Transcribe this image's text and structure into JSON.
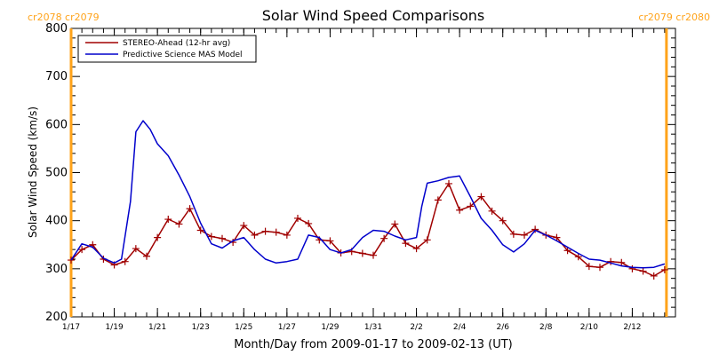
{
  "chart_data": {
    "type": "line",
    "title": "Solar Wind Speed Comparisons",
    "xlabel": "Month/Day from 2009-01-17 to 2009-02-13 (UT)",
    "ylabel": "Solar Wind Speed (km/s)",
    "ylim": [
      200,
      800
    ],
    "xlim": [
      "2009-01-17",
      "2009-02-14"
    ],
    "yticks": [
      "200",
      "300",
      "400",
      "500",
      "600",
      "700",
      "800"
    ],
    "xticks": [
      {
        "date": "2009-01-17",
        "label": "1/17"
      },
      {
        "date": "2009-01-19",
        "label": "1/19"
      },
      {
        "date": "2009-01-21",
        "label": "1/21"
      },
      {
        "date": "2009-01-23",
        "label": "1/23"
      },
      {
        "date": "2009-01-25",
        "label": "1/25"
      },
      {
        "date": "2009-01-27",
        "label": "1/27"
      },
      {
        "date": "2009-01-29",
        "label": "1/29"
      },
      {
        "date": "2009-01-31",
        "label": "1/31"
      },
      {
        "date": "2009-02-02",
        "label": "2/2"
      },
      {
        "date": "2009-02-04",
        "label": "2/4"
      },
      {
        "date": "2009-02-06",
        "label": "2/6"
      },
      {
        "date": "2009-02-08",
        "label": "2/8"
      },
      {
        "date": "2009-02-10",
        "label": "2/10"
      },
      {
        "date": "2009-02-12",
        "label": "2/12"
      }
    ],
    "grid": false,
    "legend": "top-left",
    "rotations": [
      {
        "date": "2009-01-17",
        "side": "left",
        "label": "cr2078 cr2079",
        "color": "#ffa31a"
      },
      {
        "date": "2009-02-13 14:00",
        "side": "right",
        "label": "cr2079 cr2080",
        "color": "#ffa31a"
      }
    ],
    "series": [
      {
        "name": "STEREO-Ahead (12-hr avg)",
        "color": "#a00000",
        "marker": "plus",
        "points": [
          [
            "2009-01-17 00:00",
            318
          ],
          [
            "2009-01-17 12:00",
            340
          ],
          [
            "2009-01-18 00:00",
            350
          ],
          [
            "2009-01-18 12:00",
            320
          ],
          [
            "2009-01-19 00:00",
            308
          ],
          [
            "2009-01-19 12:00",
            315
          ],
          [
            "2009-01-20 00:00",
            342
          ],
          [
            "2009-01-20 12:00",
            326
          ],
          [
            "2009-01-21 00:00",
            365
          ],
          [
            "2009-01-21 12:00",
            403
          ],
          [
            "2009-01-22 00:00",
            393
          ],
          [
            "2009-01-22 12:00",
            425
          ],
          [
            "2009-01-23 00:00",
            380
          ],
          [
            "2009-01-23 12:00",
            367
          ],
          [
            "2009-01-24 00:00",
            363
          ],
          [
            "2009-01-24 12:00",
            355
          ],
          [
            "2009-01-25 00:00",
            390
          ],
          [
            "2009-01-25 12:00",
            370
          ],
          [
            "2009-01-26 00:00",
            378
          ],
          [
            "2009-01-26 12:00",
            376
          ],
          [
            "2009-01-27 00:00",
            370
          ],
          [
            "2009-01-27 12:00",
            405
          ],
          [
            "2009-01-28 00:00",
            394
          ],
          [
            "2009-01-28 12:00",
            360
          ],
          [
            "2009-01-29 00:00",
            358
          ],
          [
            "2009-01-29 12:00",
            333
          ],
          [
            "2009-01-30 00:00",
            336
          ],
          [
            "2009-01-30 12:00",
            332
          ],
          [
            "2009-01-31 00:00",
            328
          ],
          [
            "2009-01-31 12:00",
            363
          ],
          [
            "2009-02-01 00:00",
            393
          ],
          [
            "2009-02-01 12:00",
            353
          ],
          [
            "2009-02-02 00:00",
            342
          ],
          [
            "2009-02-02 12:00",
            360
          ],
          [
            "2009-02-03 00:00",
            443
          ],
          [
            "2009-02-03 12:00",
            477
          ],
          [
            "2009-02-04 00:00",
            422
          ],
          [
            "2009-02-04 12:00",
            430
          ],
          [
            "2009-02-05 00:00",
            450
          ],
          [
            "2009-02-05 12:00",
            420
          ],
          [
            "2009-02-06 00:00",
            400
          ],
          [
            "2009-02-06 12:00",
            372
          ],
          [
            "2009-02-07 00:00",
            370
          ],
          [
            "2009-02-07 12:00",
            382
          ],
          [
            "2009-02-08 00:00",
            370
          ],
          [
            "2009-02-08 12:00",
            365
          ],
          [
            "2009-02-09 00:00",
            338
          ],
          [
            "2009-02-09 12:00",
            325
          ],
          [
            "2009-02-10 00:00",
            305
          ],
          [
            "2009-02-10 12:00",
            303
          ],
          [
            "2009-02-11 00:00",
            315
          ],
          [
            "2009-02-11 12:00",
            313
          ],
          [
            "2009-02-12 00:00",
            300
          ],
          [
            "2009-02-12 12:00",
            295
          ],
          [
            "2009-02-13 00:00",
            285
          ],
          [
            "2009-02-13 12:00",
            298
          ]
        ]
      },
      {
        "name": "Predictive Science MAS Model",
        "color": "#0000cc",
        "marker": "none",
        "points": [
          [
            "2009-01-17 00:00",
            318
          ],
          [
            "2009-01-17 12:00",
            352
          ],
          [
            "2009-01-18 00:00",
            345
          ],
          [
            "2009-01-18 12:00",
            322
          ],
          [
            "2009-01-19 00:00",
            312
          ],
          [
            "2009-01-19 08:00",
            320
          ],
          [
            "2009-01-19 18:00",
            440
          ],
          [
            "2009-01-20 00:00",
            585
          ],
          [
            "2009-01-20 08:00",
            608
          ],
          [
            "2009-01-20 16:00",
            590
          ],
          [
            "2009-01-21 00:00",
            560
          ],
          [
            "2009-01-21 12:00",
            535
          ],
          [
            "2009-01-22 00:00",
            495
          ],
          [
            "2009-01-22 12:00",
            450
          ],
          [
            "2009-01-23 00:00",
            395
          ],
          [
            "2009-01-23 12:00",
            352
          ],
          [
            "2009-01-24 00:00",
            343
          ],
          [
            "2009-01-24 12:00",
            358
          ],
          [
            "2009-01-25 00:00",
            365
          ],
          [
            "2009-01-25 12:00",
            340
          ],
          [
            "2009-01-26 00:00",
            320
          ],
          [
            "2009-01-26 12:00",
            312
          ],
          [
            "2009-01-27 00:00",
            315
          ],
          [
            "2009-01-27 12:00",
            320
          ],
          [
            "2009-01-28 00:00",
            370
          ],
          [
            "2009-01-28 12:00",
            365
          ],
          [
            "2009-01-29 00:00",
            340
          ],
          [
            "2009-01-29 12:00",
            333
          ],
          [
            "2009-01-30 00:00",
            340
          ],
          [
            "2009-01-30 12:00",
            365
          ],
          [
            "2009-01-31 00:00",
            380
          ],
          [
            "2009-01-31 12:00",
            378
          ],
          [
            "2009-02-01 00:00",
            368
          ],
          [
            "2009-02-01 12:00",
            360
          ],
          [
            "2009-02-02 00:00",
            365
          ],
          [
            "2009-02-02 06:00",
            430
          ],
          [
            "2009-02-02 12:00",
            478
          ],
          [
            "2009-02-03 00:00",
            483
          ],
          [
            "2009-02-03 12:00",
            490
          ],
          [
            "2009-02-04 00:00",
            493
          ],
          [
            "2009-02-04 12:00",
            450
          ],
          [
            "2009-02-05 00:00",
            405
          ],
          [
            "2009-02-05 12:00",
            380
          ],
          [
            "2009-02-06 00:00",
            350
          ],
          [
            "2009-02-06 12:00",
            335
          ],
          [
            "2009-02-07 00:00",
            352
          ],
          [
            "2009-02-07 12:00",
            380
          ],
          [
            "2009-02-08 00:00",
            370
          ],
          [
            "2009-02-08 12:00",
            358
          ],
          [
            "2009-02-09 00:00",
            345
          ],
          [
            "2009-02-09 12:00",
            332
          ],
          [
            "2009-02-10 00:00",
            320
          ],
          [
            "2009-02-10 12:00",
            318
          ],
          [
            "2009-02-11 00:00",
            312
          ],
          [
            "2009-02-11 12:00",
            306
          ],
          [
            "2009-02-12 00:00",
            303
          ],
          [
            "2009-02-12 12:00",
            302
          ],
          [
            "2009-02-13 00:00",
            303
          ],
          [
            "2009-02-13 12:00",
            310
          ]
        ]
      }
    ]
  }
}
